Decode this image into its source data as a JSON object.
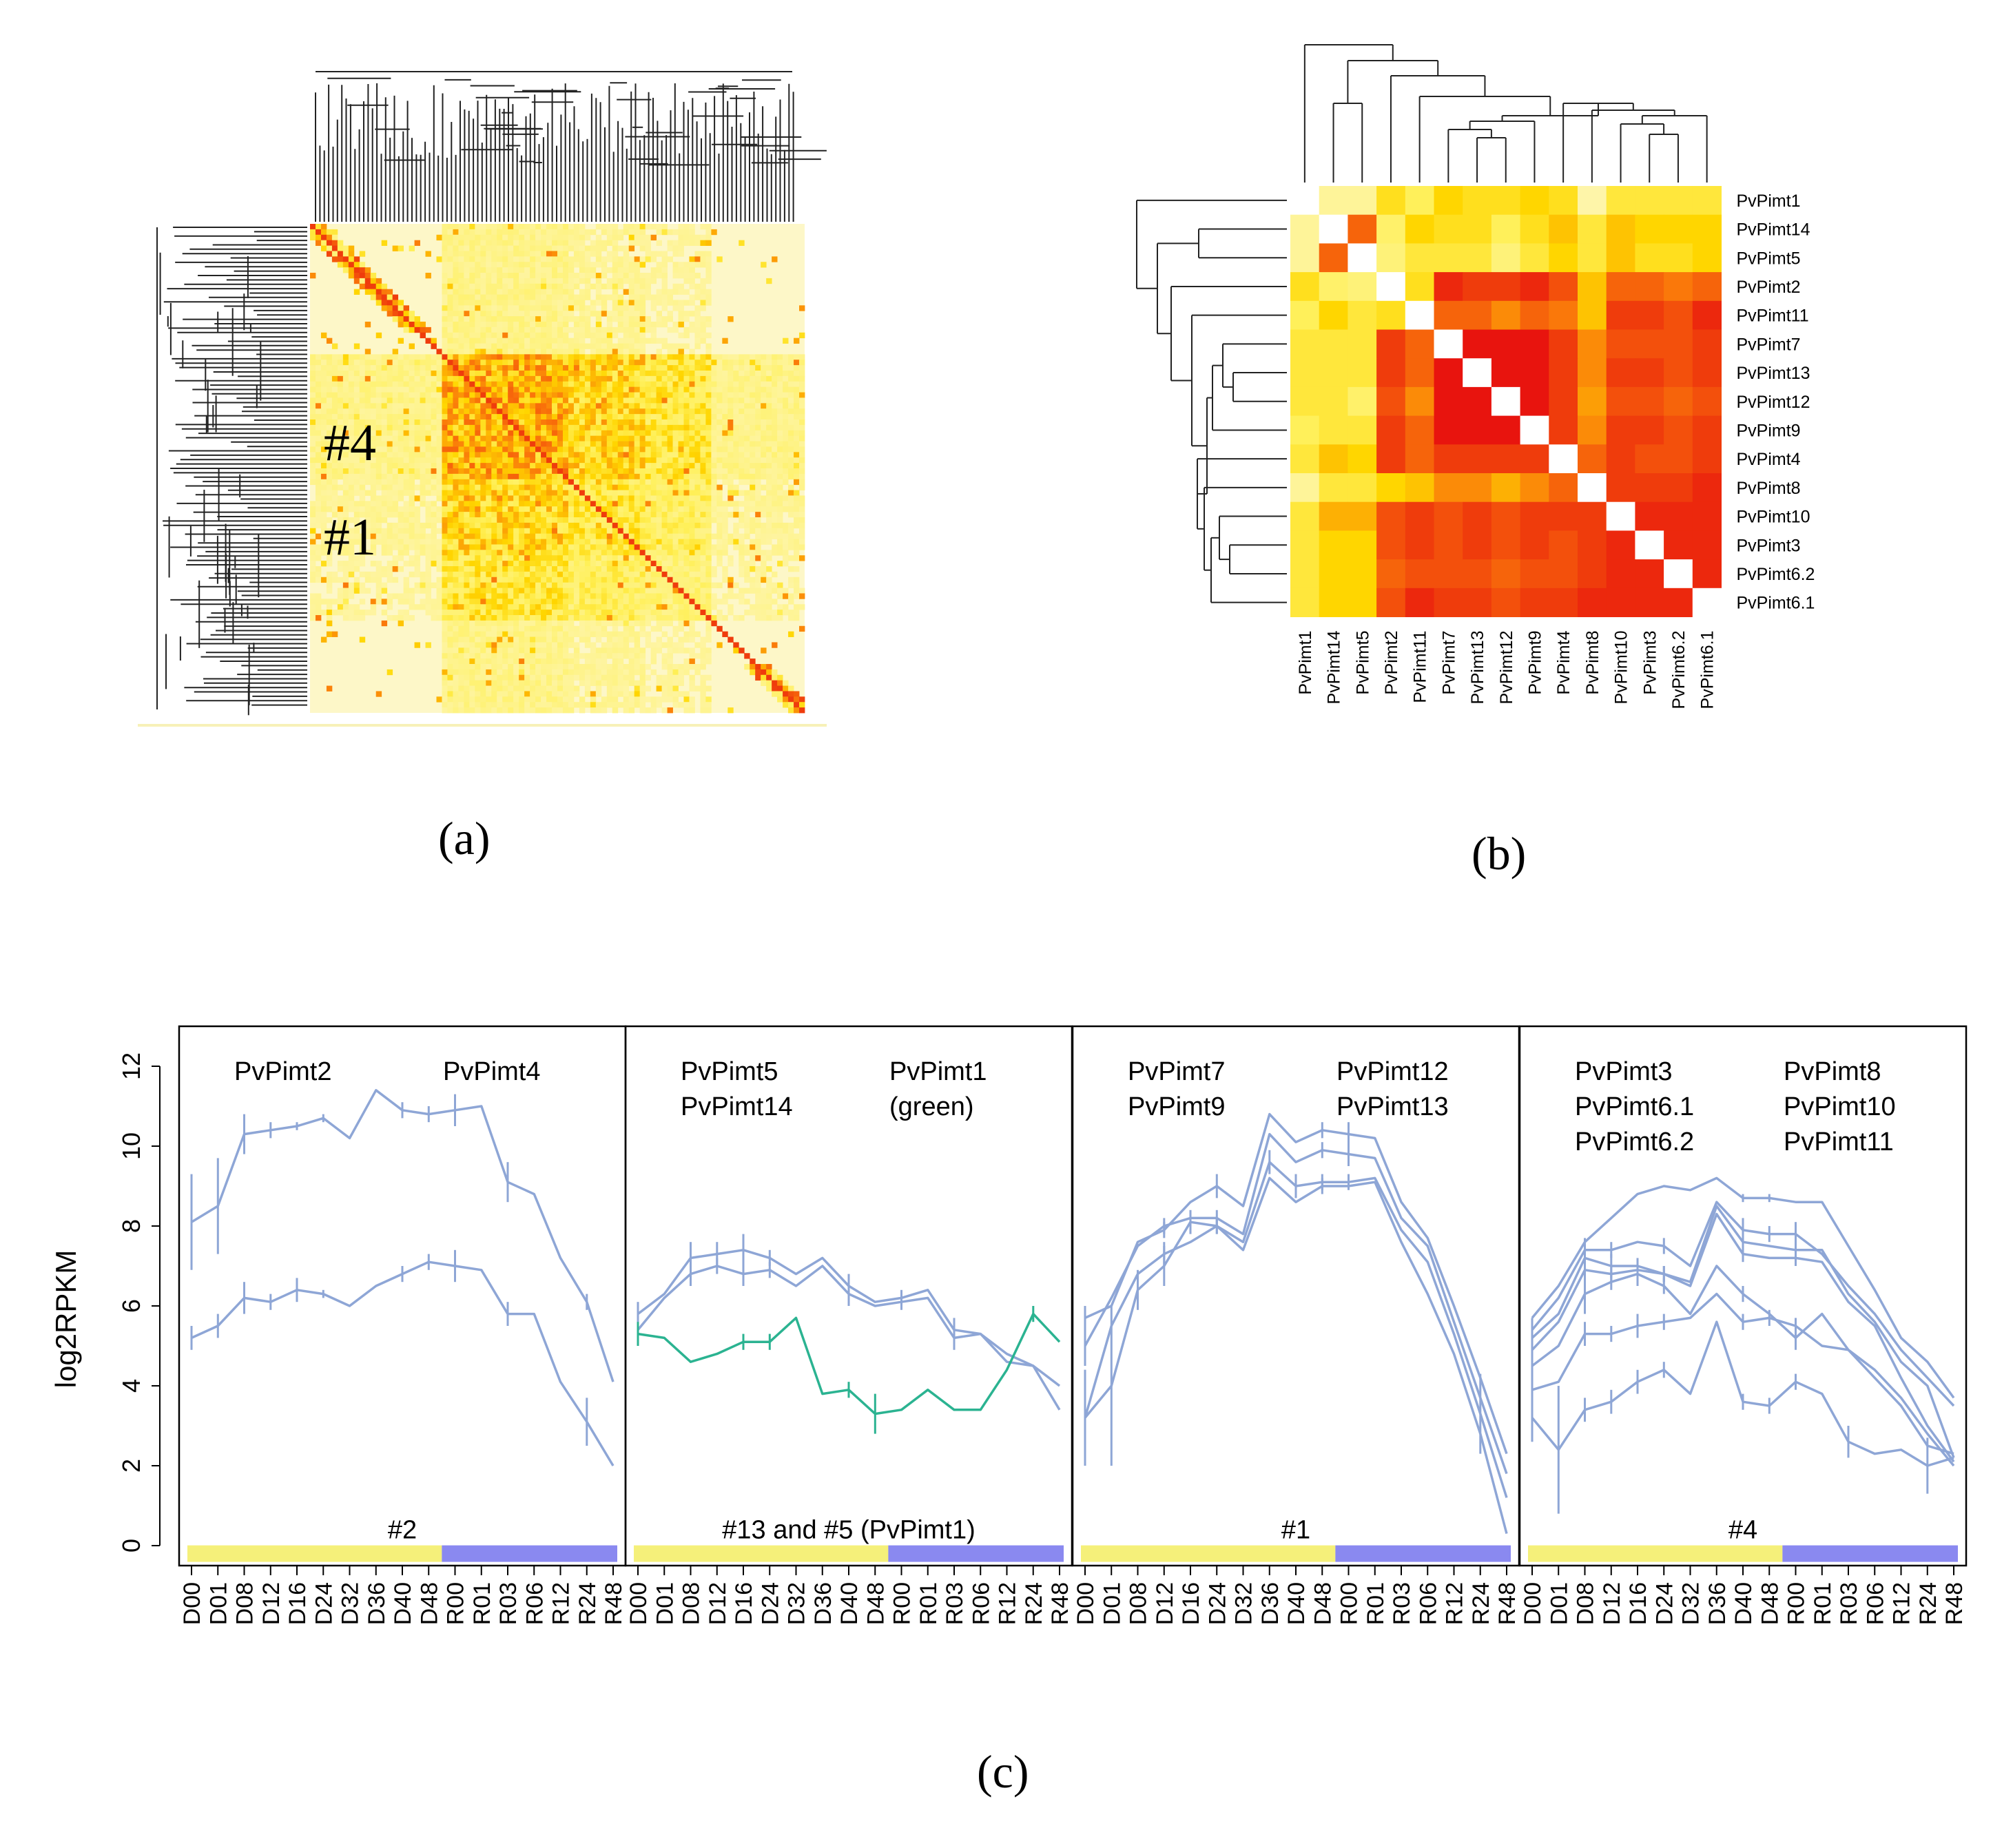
{
  "figure": {
    "panel_labels": {
      "a": "(a)",
      "b": "(b)",
      "c": "(c)"
    }
  },
  "chart_data": [
    {
      "id": "a",
      "type": "heatmap",
      "title": "",
      "description_labels": [
        "#4",
        "#1"
      ],
      "colors": {
        "low": "#fdf7c8",
        "mid": "#ffd400",
        "high": "#e8140e"
      }
    },
    {
      "id": "b",
      "type": "heatmap",
      "genes": [
        "PvPimt1",
        "PvPimt14",
        "PvPimt5",
        "PvPimt2",
        "PvPimt11",
        "PvPimt7",
        "PvPimt13",
        "PvPimt12",
        "PvPimt9",
        "PvPimt4",
        "PvPimt8",
        "PvPimt10",
        "PvPimt3",
        "PvPimt6.2",
        "PvPimt6.1"
      ],
      "matrix": [
        [
          null,
          0.15,
          0.15,
          0.45,
          0.35,
          0.5,
          0.45,
          0.45,
          0.5,
          0.45,
          0.1,
          0.4,
          0.4,
          0.4,
          0.4
        ],
        [
          0.15,
          null,
          0.8,
          0.3,
          0.5,
          0.45,
          0.45,
          0.35,
          0.45,
          0.55,
          0.4,
          0.55,
          0.5,
          0.5,
          0.5
        ],
        [
          0.15,
          0.8,
          null,
          0.25,
          0.4,
          0.4,
          0.4,
          0.25,
          0.4,
          0.5,
          0.4,
          0.55,
          0.45,
          0.45,
          0.5
        ],
        [
          0.45,
          0.3,
          0.25,
          null,
          0.45,
          0.95,
          0.9,
          0.9,
          0.95,
          0.85,
          0.55,
          0.8,
          0.8,
          0.75,
          0.8
        ],
        [
          0.35,
          0.5,
          0.4,
          0.45,
          null,
          0.8,
          0.8,
          0.7,
          0.8,
          0.75,
          0.55,
          0.9,
          0.9,
          0.85,
          0.95
        ],
        [
          0.4,
          0.4,
          0.4,
          0.9,
          0.8,
          null,
          1.0,
          1.0,
          1.0,
          0.9,
          0.7,
          0.85,
          0.85,
          0.85,
          0.9
        ],
        [
          0.4,
          0.4,
          0.4,
          0.9,
          0.8,
          1.0,
          null,
          1.0,
          1.0,
          0.9,
          0.7,
          0.9,
          0.9,
          0.85,
          0.9
        ],
        [
          0.4,
          0.4,
          0.3,
          0.85,
          0.7,
          1.0,
          1.0,
          null,
          1.0,
          0.9,
          0.65,
          0.85,
          0.85,
          0.8,
          0.85
        ],
        [
          0.35,
          0.4,
          0.4,
          0.9,
          0.8,
          1.0,
          1.0,
          1.0,
          null,
          0.9,
          0.7,
          0.9,
          0.9,
          0.85,
          0.9
        ],
        [
          0.4,
          0.55,
          0.5,
          0.9,
          0.8,
          0.9,
          0.9,
          0.9,
          0.9,
          null,
          0.8,
          0.9,
          0.85,
          0.85,
          0.9
        ],
        [
          0.15,
          0.4,
          0.4,
          0.5,
          0.55,
          0.7,
          0.7,
          0.6,
          0.7,
          0.8,
          null,
          0.9,
          0.9,
          0.9,
          0.95
        ],
        [
          0.4,
          0.6,
          0.6,
          0.85,
          0.9,
          0.85,
          0.9,
          0.85,
          0.9,
          0.9,
          0.9,
          null,
          0.95,
          0.95,
          0.95
        ],
        [
          0.4,
          0.5,
          0.5,
          0.85,
          0.9,
          0.85,
          0.9,
          0.85,
          0.9,
          0.85,
          0.9,
          0.95,
          null,
          0.95,
          0.95
        ],
        [
          0.4,
          0.5,
          0.5,
          0.8,
          0.85,
          0.85,
          0.85,
          0.8,
          0.85,
          0.85,
          0.9,
          0.95,
          0.95,
          null,
          0.95
        ],
        [
          0.4,
          0.5,
          0.5,
          0.85,
          0.95,
          0.9,
          0.9,
          0.85,
          0.9,
          0.9,
          0.95,
          0.95,
          0.95,
          0.95,
          null
        ]
      ]
    },
    {
      "id": "c",
      "type": "line",
      "ylabel": "log2RPKM",
      "ylim": [
        -0.5,
        13
      ],
      "yticks": [
        0,
        2,
        4,
        6,
        8,
        10,
        12
      ],
      "categories": [
        "D00",
        "D01",
        "D08",
        "D12",
        "D16",
        "D24",
        "D32",
        "D36",
        "D40",
        "D48",
        "R00",
        "R01",
        "R03",
        "R06",
        "R12",
        "R24",
        "R48"
      ],
      "drought_count": 10,
      "bar_colors": {
        "drought": "#f5f07a",
        "recovery": "#8a89f0"
      },
      "line_color": "#8ea6d6",
      "panels": [
        {
          "cluster": "#2",
          "names": [
            "PvPimt2",
            "PvPimt4"
          ],
          "series": [
            {
              "values": [
                8.1,
                8.5,
                10.3,
                10.4,
                10.5,
                10.7,
                10.2,
                11.4,
                10.9,
                10.8,
                10.9,
                11.0,
                9.1,
                8.8,
                7.2,
                6.1,
                4.1
              ],
              "err": [
                1.2,
                1.2,
                0.5,
                0.2,
                0.1,
                0.1,
                0,
                0,
                0.2,
                0.2,
                0.4,
                0,
                0.5,
                0,
                0,
                0.2,
                0
              ]
            },
            {
              "values": [
                5.2,
                5.5,
                6.2,
                6.1,
                6.4,
                6.3,
                6.0,
                6.5,
                6.8,
                7.1,
                7.0,
                6.9,
                5.8,
                5.8,
                4.1,
                3.1,
                2.0
              ],
              "err": [
                0.3,
                0.3,
                0.4,
                0.2,
                0.3,
                0.1,
                0,
                0,
                0.2,
                0.2,
                0.4,
                0,
                0.3,
                0,
                0,
                0.6,
                0
              ]
            }
          ]
        },
        {
          "cluster": "#13 and #5 (PvPimt1)",
          "names": [
            "PvPimt5\nPvPimt14",
            "PvPimt1\n(green)"
          ],
          "series": [
            {
              "values": [
                5.8,
                6.3,
                7.2,
                7.3,
                7.4,
                7.2,
                6.8,
                7.2,
                6.5,
                6.1,
                6.2,
                6.4,
                5.4,
                5.3,
                4.6,
                4.5,
                4.0
              ],
              "err": [
                0.3,
                0,
                0.4,
                0.3,
                0.4,
                0.2,
                0,
                0,
                0.3,
                0,
                0.2,
                0,
                0.3,
                0,
                0,
                0,
                0
              ]
            },
            {
              "values": [
                5.4,
                6.2,
                6.8,
                7.0,
                6.8,
                6.9,
                6.5,
                7.0,
                6.3,
                6.0,
                6.1,
                6.2,
                5.2,
                5.3,
                4.8,
                4.5,
                3.4
              ],
              "err": [
                0.3,
                0,
                0.3,
                0.2,
                0.3,
                0.2,
                0,
                0,
                0.3,
                0,
                0.2,
                0,
                0.3,
                0,
                0,
                0,
                0
              ]
            },
            {
              "values": [
                5.3,
                5.2,
                4.6,
                4.8,
                5.1,
                5.1,
                5.7,
                3.8,
                3.9,
                3.3,
                3.4,
                3.9,
                3.4,
                3.4,
                4.4,
                5.8,
                5.1
              ],
              "err": [
                0.3,
                0,
                0,
                0,
                0.2,
                0.2,
                0,
                0,
                0.2,
                0.5,
                0,
                0,
                0,
                0,
                0,
                0.2,
                0
              ],
              "color": "#2bb391"
            }
          ]
        },
        {
          "cluster": "#1",
          "names": [
            "PvPimt7\nPvPimt9",
            "PvPimt12\nPvPimt13"
          ],
          "series": [
            {
              "values": [
                5.7,
                6.0,
                7.6,
                7.9,
                8.6,
                9.0,
                8.5,
                10.8,
                10.1,
                10.4,
                10.3,
                10.2,
                8.6,
                7.7,
                6.0,
                4.2,
                2.3
              ],
              "err": [
                0.3,
                0,
                0,
                0.2,
                0,
                0.3,
                0,
                0,
                0,
                0.2,
                0.3,
                0,
                0,
                0,
                0,
                0,
                0
              ]
            },
            {
              "values": [
                5.0,
                6.2,
                7.5,
                8.0,
                8.2,
                8.2,
                7.8,
                10.3,
                9.6,
                9.9,
                9.8,
                9.7,
                8.2,
                7.5,
                5.6,
                3.7,
                1.8
              ],
              "err": [
                0.5,
                0,
                0,
                0.2,
                0,
                0.2,
                0,
                0,
                0,
                0.2,
                0.3,
                0,
                0,
                0,
                0,
                0,
                0
              ]
            },
            {
              "values": [
                3.2,
                4.0,
                6.4,
                7.0,
                8.1,
                8.0,
                7.6,
                9.6,
                9.0,
                9.1,
                9.1,
                9.2,
                7.9,
                7.1,
                5.3,
                3.3,
                1.2
              ],
              "err": [
                1.2,
                2.0,
                0.5,
                0.5,
                0.3,
                0.2,
                0,
                0.3,
                0.3,
                0.2,
                0.2,
                0,
                0,
                0,
                0,
                1.0,
                0
              ]
            },
            {
              "values": [
                3.2,
                5.5,
                6.8,
                7.3,
                7.6,
                8.0,
                7.4,
                9.2,
                8.6,
                9.0,
                9.0,
                9.1,
                7.6,
                6.3,
                4.8,
                2.8,
                0.3
              ],
              "err": [
                1.2,
                0,
                0,
                0.3,
                0,
                0.2,
                0,
                0,
                0,
                0.2,
                0,
                0,
                0,
                0,
                0,
                0,
                0
              ]
            }
          ]
        },
        {
          "cluster": "#4",
          "names": [
            "PvPimt3\nPvPimt6.1\nPvPimt6.2",
            "PvPimt8\nPvPimt10\nPvPimt11"
          ],
          "series": [
            {
              "values": [
                5.7,
                6.5,
                7.6,
                8.2,
                8.8,
                9.0,
                8.9,
                9.2,
                8.7,
                8.7,
                8.6,
                8.6,
                7.5,
                6.4,
                5.2,
                4.6,
                3.7
              ],
              "err": [
                0,
                0,
                0,
                0,
                0,
                0,
                0,
                0,
                0.1,
                0.1,
                0,
                0,
                0,
                0,
                0,
                0,
                0
              ]
            },
            {
              "values": [
                5.4,
                6.2,
                7.4,
                7.4,
                7.6,
                7.5,
                7.0,
                8.6,
                7.9,
                7.8,
                7.8,
                7.3,
                6.5,
                5.8,
                4.9,
                4.2,
                3.5
              ],
              "err": [
                0.3,
                0,
                0.3,
                0.2,
                0,
                0.2,
                0,
                0,
                0.3,
                0.2,
                0.3,
                0,
                0,
                0,
                0,
                0,
                0
              ]
            },
            {
              "values": [
                5.2,
                5.8,
                7.2,
                7.0,
                7.0,
                6.8,
                6.6,
                8.5,
                7.6,
                7.5,
                7.4,
                7.4,
                6.3,
                5.6,
                4.6,
                4.0,
                2.2
              ],
              "err": [
                0.3,
                0,
                0.2,
                0.3,
                0.2,
                0.2,
                0,
                0,
                0.2,
                0,
                0.2,
                0,
                0,
                0,
                0,
                0,
                0
              ]
            },
            {
              "values": [
                4.9,
                5.6,
                6.9,
                6.8,
                6.9,
                6.8,
                6.5,
                8.3,
                7.3,
                7.2,
                7.2,
                7.1,
                6.1,
                5.5,
                4.2,
                3.0,
                2.1
              ],
              "err": [
                0.3,
                0,
                0.2,
                0.2,
                0.2,
                0.2,
                0,
                0,
                0.2,
                0,
                0.2,
                0,
                0,
                0,
                0,
                0,
                0
              ]
            },
            {
              "values": [
                4.5,
                5.0,
                6.3,
                6.6,
                6.8,
                6.5,
                5.8,
                7.0,
                6.3,
                5.8,
                5.2,
                5.8,
                4.9,
                4.4,
                3.7,
                2.8,
                2.0
              ],
              "err": [
                0.3,
                0,
                0.5,
                0.2,
                0.3,
                0.2,
                0,
                0,
                0.2,
                0,
                0.3,
                0,
                0,
                0,
                0,
                0,
                0
              ]
            },
            {
              "values": [
                3.9,
                4.1,
                5.3,
                5.3,
                5.5,
                5.6,
                5.7,
                6.3,
                5.6,
                5.7,
                5.5,
                5.0,
                4.9,
                4.2,
                3.5,
                2.5,
                2.3
              ],
              "err": [
                0.5,
                0,
                0.3,
                0.2,
                0.3,
                0.2,
                0,
                0,
                0.2,
                0.2,
                0.2,
                0,
                0,
                0,
                0,
                0,
                0
              ]
            },
            {
              "values": [
                3.2,
                2.4,
                3.4,
                3.6,
                4.1,
                4.4,
                3.8,
                5.6,
                3.6,
                3.5,
                4.1,
                3.8,
                2.6,
                2.3,
                2.4,
                2.0,
                2.2
              ],
              "err": [
                0.6,
                1.6,
                0.3,
                0.3,
                0.3,
                0.2,
                0,
                0,
                0.2,
                0.2,
                0.2,
                0,
                0.4,
                0,
                0,
                0.7,
                0
              ]
            }
          ]
        }
      ]
    }
  ]
}
